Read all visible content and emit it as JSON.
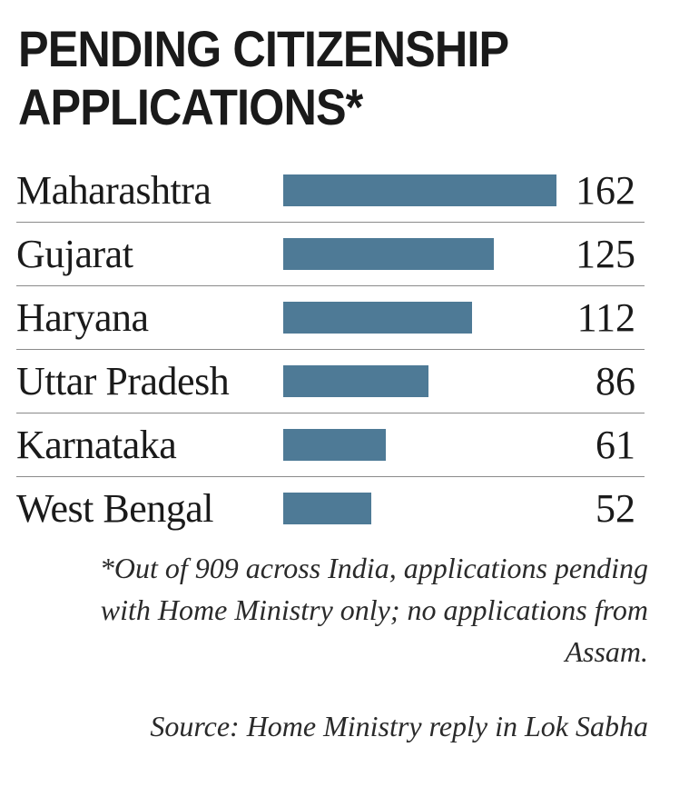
{
  "chart_data": {
    "type": "bar",
    "title": "PENDING CITIZENSHIP APPLICATIONS*",
    "categories": [
      "Maharashtra",
      "Gujarat",
      "Haryana",
      "Uttar Pradesh",
      "Karnataka",
      "West Bengal"
    ],
    "values": [
      162,
      125,
      112,
      86,
      61,
      52
    ],
    "footnote": "*Out of 909 across India, applications pending with Home Ministry only; no applications from Assam.",
    "source": "Source: Home Ministry reply in Lok Sabha",
    "bar_color": "#4e7a96",
    "orientation": "horizontal",
    "grid": false
  }
}
